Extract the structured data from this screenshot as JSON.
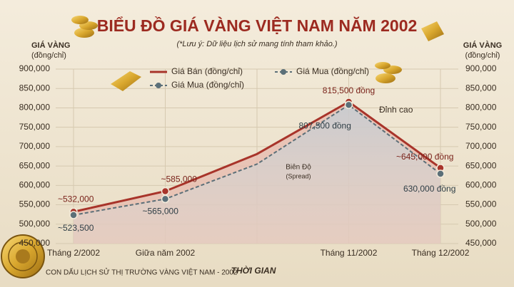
{
  "chart_data": {
    "type": "line",
    "title": "BIỂU ĐỒ GIÁ VÀNG VIỆT NAM NĂM 2002",
    "subtitle": "(*Lưu ý: Dữ liệu lịch sử mang tính tham khảo.)",
    "y_label": "GIÁ VÀNG",
    "y_unit": "(đồng/chỉ)",
    "x_label": "THỜI GIAN",
    "categories": [
      "Tháng 2/2002",
      "Giữa năm 2002",
      null,
      "Tháng 11/2002",
      "Tháng 12/2002"
    ],
    "series": [
      {
        "name": "Giá Bán (đồng/chỉ)",
        "color": "#a8342a",
        "values": [
          532000,
          585000,
          681000,
          815500,
          645000
        ],
        "value_labels": [
          "~532,000",
          "~585,000",
          null,
          "815,500 đồng",
          "~645,000 đồng"
        ]
      },
      {
        "name": "Giá Mua (đồng/chỉ)",
        "color": "#5b6f78",
        "values": [
          523500,
          565000,
          655000,
          807500,
          630000
        ],
        "value_labels": [
          "~523,500",
          "~565,000",
          null,
          "807,500 đồng",
          "630,000 đồng"
        ]
      }
    ],
    "ylim": [
      450000,
      900000
    ],
    "yticks": [
      {
        "value": 450000,
        "label": "450,000"
      },
      {
        "value": 500000,
        "label": "500,000"
      },
      {
        "value": 550000,
        "label": "550,000"
      },
      {
        "value": 600000,
        "label": "600,000"
      },
      {
        "value": 650000,
        "label": "650,000"
      },
      {
        "value": 700000,
        "label": "700,000"
      },
      {
        "value": 750000,
        "label": "750,000"
      },
      {
        "value": 800000,
        "label": "800,000"
      },
      {
        "value": 850000,
        "label": "850,000"
      },
      {
        "value": 900000,
        "label": "900,000"
      }
    ],
    "grid": true,
    "annotations": [
      "Đỉnh cao",
      "Biên Độ",
      "(Spread)"
    ],
    "footer": "CON DẤU LỊCH SỬ THỊ TRƯỜNG VÀNG VIỆT NAM - 2002"
  }
}
